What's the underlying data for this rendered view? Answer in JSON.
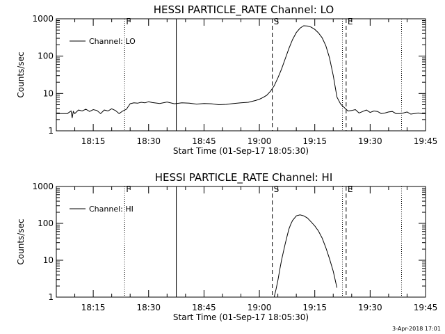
{
  "footer": "3-Apr-2018 17:01",
  "chart_data": [
    {
      "type": "line",
      "title": "HESSI PARTICLE_RATE Channel: LO",
      "xlabel": "Start Time (01-Sep-17 18:05:30)",
      "ylabel": "Counts/sec",
      "yscale": "log",
      "ylim": [
        1,
        1000
      ],
      "yticks": [
        1,
        10,
        100,
        1000
      ],
      "ytick_labels": [
        "1",
        "10",
        "100",
        "1000"
      ],
      "xlim_min": [
        0,
        100
      ],
      "xtick_min": [
        10,
        25,
        40,
        55,
        70,
        85,
        100
      ],
      "xtick_labels": [
        "18:15",
        "18:30",
        "18:45",
        "19:00",
        "19:15",
        "19:30",
        "19:45"
      ],
      "grid": false,
      "legend_location": "top-left",
      "series": [
        {
          "name": "Channel: LO",
          "x": [
            0,
            1,
            2,
            3,
            4,
            4.3,
            4.6,
            5,
            6,
            7,
            8,
            9,
            10,
            11,
            12,
            13,
            14,
            15,
            16,
            17,
            18,
            19,
            20,
            21,
            22,
            23,
            24,
            25,
            26,
            28,
            30,
            32,
            34,
            36,
            38,
            40,
            42,
            44,
            46,
            48,
            50,
            52,
            54,
            55,
            56,
            57,
            58,
            59,
            60,
            61,
            62,
            63,
            64,
            65,
            66,
            67,
            68,
            69,
            70,
            71,
            72,
            73,
            74,
            75,
            76,
            77,
            78,
            79,
            80,
            81,
            82,
            83,
            84,
            85,
            86,
            87,
            88,
            89,
            90,
            91,
            92,
            93,
            94,
            95,
            96,
            97,
            98,
            99,
            100
          ],
          "y": [
            2.9,
            2.9,
            2.9,
            2.9,
            3.4,
            2.2,
            3.3,
            2.9,
            3.6,
            3.4,
            3.8,
            3.3,
            3.7,
            3.5,
            2.9,
            3.6,
            3.4,
            3.9,
            3.5,
            2.9,
            3.4,
            3.8,
            5.3,
            5.6,
            5.5,
            5.8,
            5.6,
            6.0,
            5.7,
            5.4,
            5.9,
            5.3,
            5.6,
            5.5,
            5.2,
            5.4,
            5.3,
            5.0,
            5.1,
            5.4,
            5.6,
            5.8,
            6.5,
            7.0,
            7.8,
            9.0,
            11.5,
            16,
            26,
            45,
            85,
            160,
            280,
            430,
            560,
            650,
            640,
            600,
            520,
            420,
            310,
            190,
            90,
            30,
            8,
            5.2,
            4.2,
            3.4,
            3.5,
            3.7,
            3.0,
            3.3,
            3.6,
            3.1,
            3.4,
            3.3,
            2.9,
            3.0,
            3.2,
            3.3,
            2.9,
            2.9,
            3.0,
            3.2,
            2.8,
            2.9,
            3.0,
            2.9,
            2.9
          ],
          "color": "#000000"
        }
      ],
      "markers": [
        {
          "label": "F",
          "x_min": 18.5,
          "style": "dotted"
        },
        {
          "label": "",
          "x_min": 32.5,
          "style": "solid"
        },
        {
          "label": "S",
          "x_min": 58.5,
          "style": "dashed"
        },
        {
          "label": "",
          "x_min": 77.5,
          "style": "dotted"
        },
        {
          "label": "E",
          "x_min": 78.5,
          "style": "dashed"
        },
        {
          "label": "",
          "x_min": 93.5,
          "style": "dotted"
        }
      ]
    },
    {
      "type": "line",
      "title": "HESSI PARTICLE_RATE Channel: HI",
      "xlabel": "Start Time (01-Sep-17 18:05:30)",
      "ylabel": "Counts/sec",
      "yscale": "log",
      "ylim": [
        1,
        1000
      ],
      "yticks": [
        1,
        10,
        100,
        1000
      ],
      "ytick_labels": [
        "1",
        "10",
        "100",
        "1000"
      ],
      "xlim_min": [
        0,
        100
      ],
      "xtick_min": [
        10,
        25,
        40,
        55,
        70,
        85,
        100
      ],
      "xtick_labels": [
        "18:15",
        "18:30",
        "18:45",
        "19:00",
        "19:15",
        "19:30",
        "19:45"
      ],
      "grid": false,
      "legend_location": "top-left",
      "series": [
        {
          "name": "Channel: HI",
          "x": [
            59,
            59.5,
            60,
            60.5,
            61,
            61.5,
            62,
            62.5,
            63,
            63.5,
            64,
            65,
            66,
            67,
            68,
            69,
            70,
            71,
            72,
            73,
            74,
            75,
            76
          ],
          "y": [
            1.0,
            1.6,
            2.8,
            5.5,
            10,
            17,
            28,
            45,
            70,
            95,
            120,
            160,
            170,
            160,
            140,
            110,
            85,
            62,
            40,
            22,
            11,
            5,
            1.8
          ],
          "color": "#000000"
        }
      ],
      "markers": [
        {
          "label": "F",
          "x_min": 18.5,
          "style": "dotted"
        },
        {
          "label": "",
          "x_min": 32.5,
          "style": "solid"
        },
        {
          "label": "S",
          "x_min": 58.5,
          "style": "dashed"
        },
        {
          "label": "",
          "x_min": 77.5,
          "style": "dotted"
        },
        {
          "label": "E",
          "x_min": 78.5,
          "style": "dashed"
        },
        {
          "label": "",
          "x_min": 93.5,
          "style": "dotted"
        }
      ]
    }
  ]
}
